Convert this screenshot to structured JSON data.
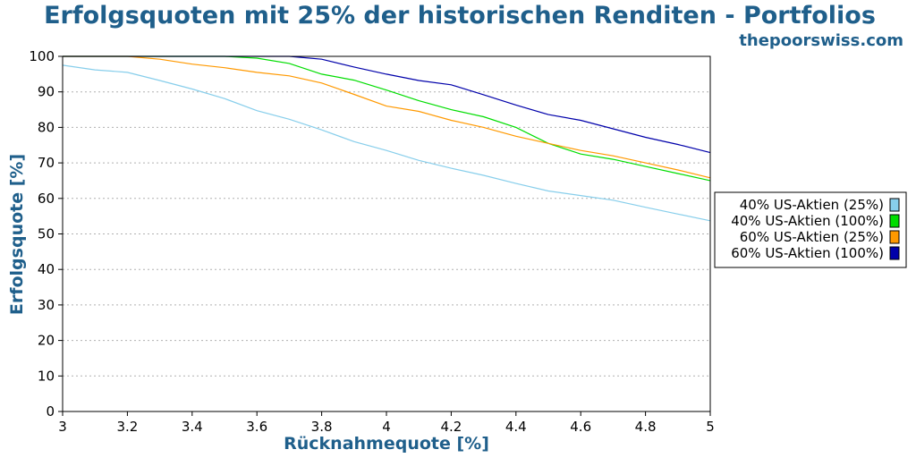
{
  "title": "Erfolgsquoten mit 25% der historischen Renditen - Portfolios",
  "watermark": "thepoorswiss.com",
  "colors": {
    "title": "#1f5f8b"
  },
  "chart_data": {
    "type": "line",
    "xlabel": "Rücknahmequote [%]",
    "ylabel": "Erfolgsquote [%]",
    "xlim": [
      3,
      5
    ],
    "ylim": [
      0,
      100
    ],
    "xticks": [
      "3",
      "3.2",
      "3.4",
      "3.6",
      "3.8",
      "4",
      "4.2",
      "4.4",
      "4.6",
      "4.8",
      "5"
    ],
    "yticks": [
      "0",
      "10",
      "20",
      "30",
      "40",
      "50",
      "60",
      "70",
      "80",
      "90",
      "100"
    ],
    "grid": "y-dotted",
    "legend_position": "right",
    "x": [
      3.0,
      3.1,
      3.2,
      3.3,
      3.4,
      3.5,
      3.6,
      3.7,
      3.8,
      3.9,
      4.0,
      4.1,
      4.2,
      4.3,
      4.4,
      4.5,
      4.6,
      4.7,
      4.8,
      4.9,
      5.0
    ],
    "series": [
      {
        "name": "40% US-Aktien (25%)",
        "color": "#87ceeb",
        "values": [
          97.5,
          96.2,
          95.5,
          93.2,
          90.8,
          88.1,
          84.7,
          82.3,
          79.3,
          76.0,
          73.5,
          70.7,
          68.5,
          66.5,
          64.2,
          62.1,
          60.8,
          59.5,
          57.5,
          55.6,
          53.7
        ]
      },
      {
        "name": "40% US-Aktien (100%)",
        "color": "#00dd00",
        "values": [
          100,
          100,
          100,
          100,
          100,
          100,
          99.5,
          98.0,
          95.0,
          93.3,
          90.5,
          87.5,
          85.0,
          83.0,
          80.0,
          75.5,
          72.5,
          71.0,
          69.0,
          67.0,
          65.0
        ]
      },
      {
        "name": "60% US-Aktien (25%)",
        "color": "#ff9900",
        "values": [
          100,
          100,
          100,
          99.2,
          97.8,
          96.8,
          95.5,
          94.5,
          92.5,
          89.3,
          86.0,
          84.5,
          82.0,
          80.0,
          77.5,
          75.5,
          73.5,
          72.0,
          70.0,
          68.0,
          65.8
        ]
      },
      {
        "name": "60% US-Aktien (100%)",
        "color": "#0000aa",
        "values": [
          100,
          100,
          100,
          100,
          100,
          100,
          100,
          100,
          99.2,
          97.0,
          95.0,
          93.2,
          92.0,
          89.2,
          86.3,
          83.6,
          82.0,
          79.6,
          77.2,
          75.2,
          72.9
        ]
      }
    ]
  }
}
